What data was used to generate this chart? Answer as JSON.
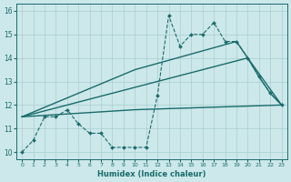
{
  "xlabel": "Humidex (Indice chaleur)",
  "bg_color": "#cce8ea",
  "grid_color": "#aacdd0",
  "line_color": "#1a6b6b",
  "xlim": [
    -0.5,
    23.5
  ],
  "ylim": [
    9.7,
    16.3
  ],
  "xticks": [
    0,
    1,
    2,
    3,
    4,
    5,
    6,
    7,
    8,
    9,
    10,
    11,
    12,
    13,
    14,
    15,
    16,
    17,
    18,
    19,
    20,
    21,
    22,
    23
  ],
  "yticks": [
    10,
    11,
    12,
    13,
    14,
    15,
    16
  ],
  "series_dashed": {
    "x": [
      0,
      1,
      2,
      3,
      4,
      5,
      6,
      7,
      8,
      9,
      10,
      11,
      12,
      13,
      14,
      15,
      16,
      17,
      18,
      19,
      20,
      21,
      22,
      23
    ],
    "y": [
      10.0,
      10.5,
      11.5,
      11.5,
      11.8,
      11.2,
      10.8,
      10.8,
      10.2,
      10.2,
      10.2,
      10.2,
      12.4,
      15.8,
      14.5,
      15.0,
      15.0,
      15.5,
      14.7,
      14.7,
      14.0,
      13.2,
      12.5,
      12.0
    ]
  },
  "series_solid1": {
    "x": [
      0,
      10,
      19,
      20,
      21,
      22,
      23
    ],
    "y": [
      11.5,
      13.5,
      14.7,
      14.0,
      13.2,
      12.5,
      12.0
    ]
  },
  "series_solid2": {
    "x": [
      0,
      20,
      23
    ],
    "y": [
      11.5,
      14.0,
      12.0
    ]
  },
  "series_solid3": {
    "x": [
      0,
      10,
      23
    ],
    "y": [
      11.5,
      11.8,
      12.0
    ]
  }
}
